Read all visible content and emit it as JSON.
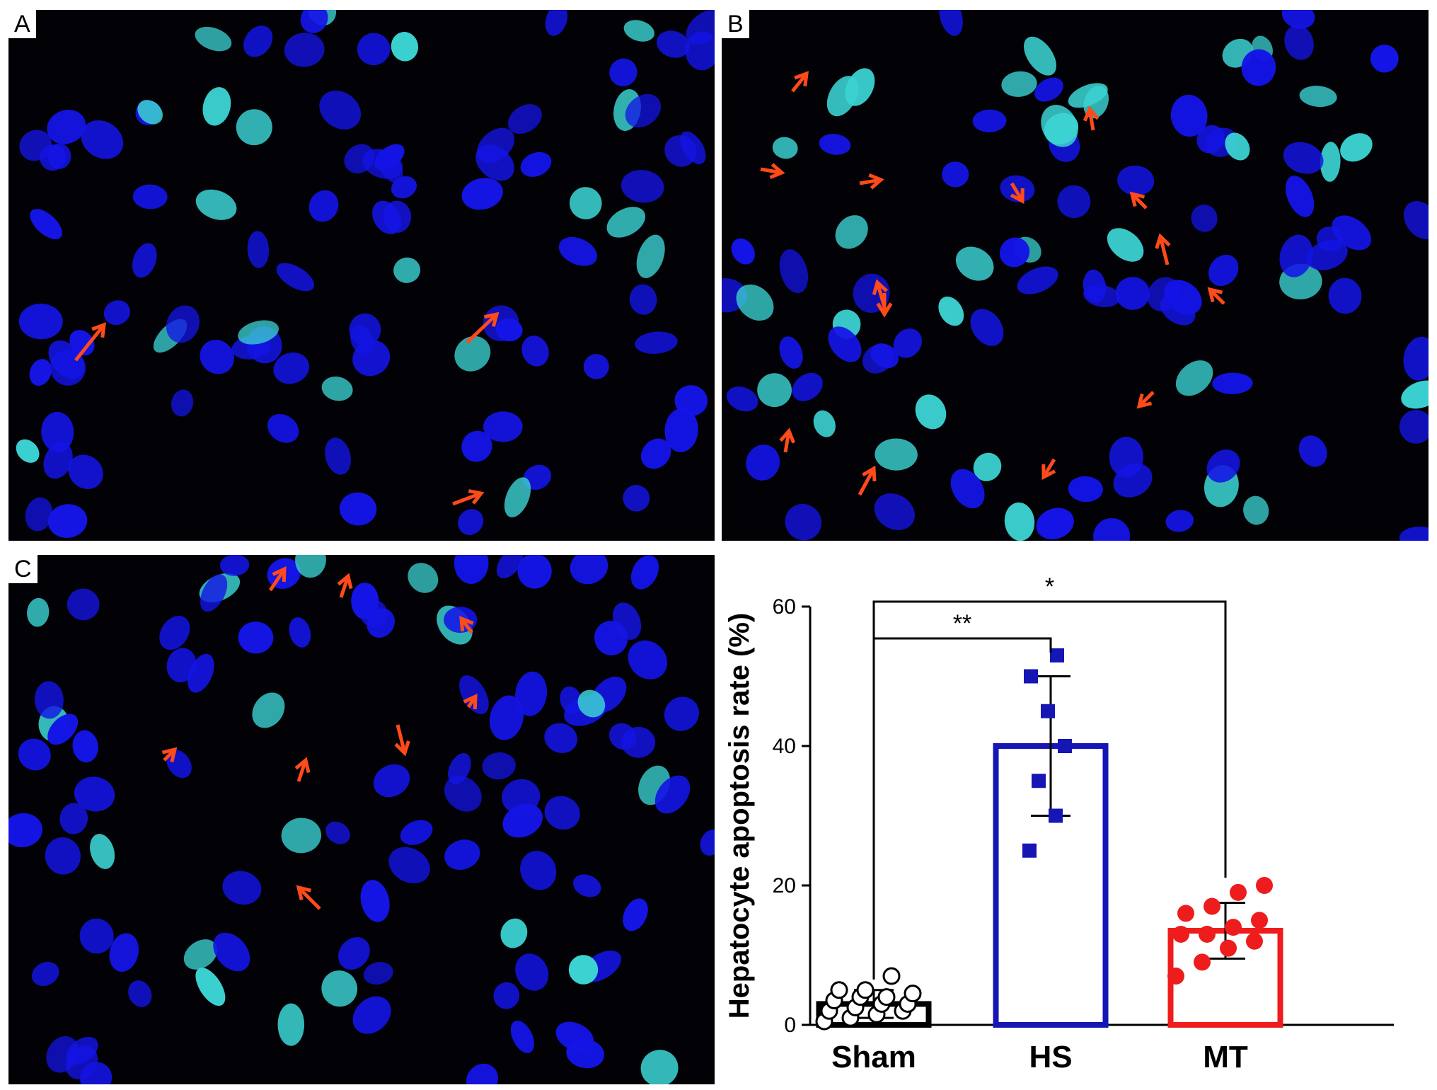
{
  "panels": [
    {
      "label": "A",
      "nuclei_stain": "blue",
      "apoptotic_stain": "cyan",
      "marker": "red arrow"
    },
    {
      "label": "B",
      "nuclei_stain": "blue",
      "apoptotic_stain": "cyan",
      "marker": "red arrow"
    },
    {
      "label": "C",
      "nuclei_stain": "blue",
      "apoptotic_stain": "cyan",
      "marker": "red arrow"
    }
  ],
  "colors": {
    "background": "#010106",
    "nucleus": "#1414e6",
    "apoptotic": "#3cd2d2",
    "arrow": "#ff4a1a",
    "sham": "#000000",
    "hs": "#1616b4",
    "mt": "#ee1c1c"
  },
  "chart_data": {
    "type": "bar",
    "categories": [
      "Sham",
      "HS",
      "MT"
    ],
    "values": [
      3,
      40,
      13.5
    ],
    "error_sd": [
      2,
      10,
      4
    ],
    "points": [
      [
        0.5,
        1,
        1.5,
        2,
        2,
        2.5,
        3,
        3,
        3.5,
        4,
        4,
        4.5,
        5,
        5,
        7
      ],
      [
        25,
        30,
        35,
        40,
        45,
        50,
        53
      ],
      [
        7,
        9,
        11,
        12,
        13,
        13,
        14,
        15,
        16,
        17,
        19,
        20
      ]
    ],
    "markers": [
      "open circle",
      "filled square",
      "filled circle"
    ],
    "ylabel": "Hepatocyte apoptosis rate  (%)",
    "xlabel": "",
    "ylim": [
      0,
      60
    ],
    "yticks": [
      "0",
      "20",
      "40",
      "60"
    ],
    "significance": [
      {
        "from": "Sham",
        "to": "HS",
        "label": "**"
      },
      {
        "from": "Sham",
        "to": "MT",
        "label": "*"
      }
    ],
    "grid": false,
    "legend": "none"
  }
}
